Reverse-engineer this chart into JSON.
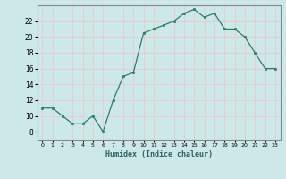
{
  "x": [
    0,
    1,
    2,
    3,
    4,
    5,
    6,
    7,
    8,
    9,
    10,
    11,
    12,
    13,
    14,
    15,
    16,
    17,
    18,
    19,
    20,
    21,
    22,
    23
  ],
  "y": [
    11,
    11,
    10,
    9,
    9,
    10,
    8,
    12,
    15,
    15.5,
    20.5,
    21,
    21.5,
    22,
    23,
    23.5,
    22.5,
    23,
    21,
    21,
    20,
    18,
    16,
    16
  ],
  "xlabel": "Humidex (Indice chaleur)",
  "xlim": [
    -0.5,
    23.5
  ],
  "ylim": [
    7,
    24
  ],
  "yticks": [
    8,
    10,
    12,
    14,
    16,
    18,
    20,
    22
  ],
  "xticks": [
    0,
    1,
    2,
    3,
    4,
    5,
    6,
    7,
    8,
    9,
    10,
    11,
    12,
    13,
    14,
    15,
    16,
    17,
    18,
    19,
    20,
    21,
    22,
    23
  ],
  "line_color": "#2d7d6f",
  "marker_color": "#2d7d6f",
  "bg_color": "#cce8e8",
  "plot_bg": "#cce8e8",
  "grid_color": "#e8c8c8",
  "spine_color": "#888888"
}
